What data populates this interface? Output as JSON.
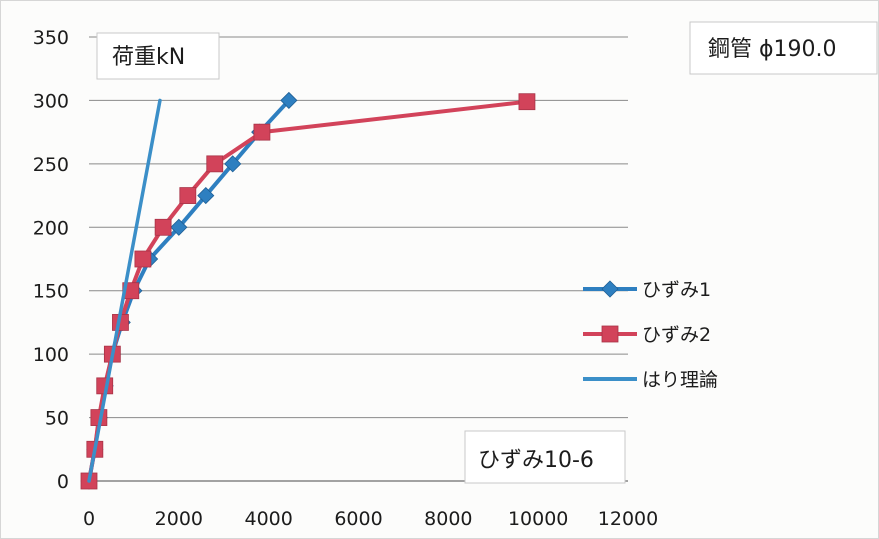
{
  "chart_data": {
    "type": "line",
    "title": "",
    "ylabel": "荷重kN",
    "xlabel": "ひずみ10-6",
    "annotation": "鋼管 ϕ190.0",
    "xlim": [
      0,
      12000
    ],
    "ylim": [
      0,
      350
    ],
    "xticks": [
      0,
      2000,
      4000,
      6000,
      8000,
      10000,
      12000
    ],
    "yticks": [
      0,
      50,
      100,
      150,
      200,
      250,
      300,
      350
    ],
    "grid": "horizontal",
    "legend_position": "right",
    "series": [
      {
        "name": "ひずみ1",
        "color": "#2e7fc0",
        "marker": "diamond",
        "points": [
          [
            0,
            0
          ],
          [
            130,
            25
          ],
          [
            230,
            50
          ],
          [
            360,
            75
          ],
          [
            520,
            100
          ],
          [
            740,
            125
          ],
          [
            1000,
            150
          ],
          [
            1350,
            175
          ],
          [
            2000,
            200
          ],
          [
            2600,
            225
          ],
          [
            3200,
            250
          ],
          [
            3800,
            275
          ],
          [
            4450,
            300
          ]
        ]
      },
      {
        "name": "ひずみ2",
        "color": "#d2435a",
        "marker": "square",
        "points": [
          [
            0,
            0
          ],
          [
            130,
            25
          ],
          [
            220,
            50
          ],
          [
            350,
            75
          ],
          [
            520,
            100
          ],
          [
            700,
            125
          ],
          [
            930,
            150
          ],
          [
            1200,
            175
          ],
          [
            1650,
            200
          ],
          [
            2200,
            225
          ],
          [
            2800,
            250
          ],
          [
            3850,
            275
          ],
          [
            9750,
            299
          ]
        ]
      },
      {
        "name": "はり理論",
        "color": "#3b8fc8",
        "marker": "none",
        "points": [
          [
            0,
            0
          ],
          [
            1580,
            300
          ]
        ]
      }
    ]
  }
}
